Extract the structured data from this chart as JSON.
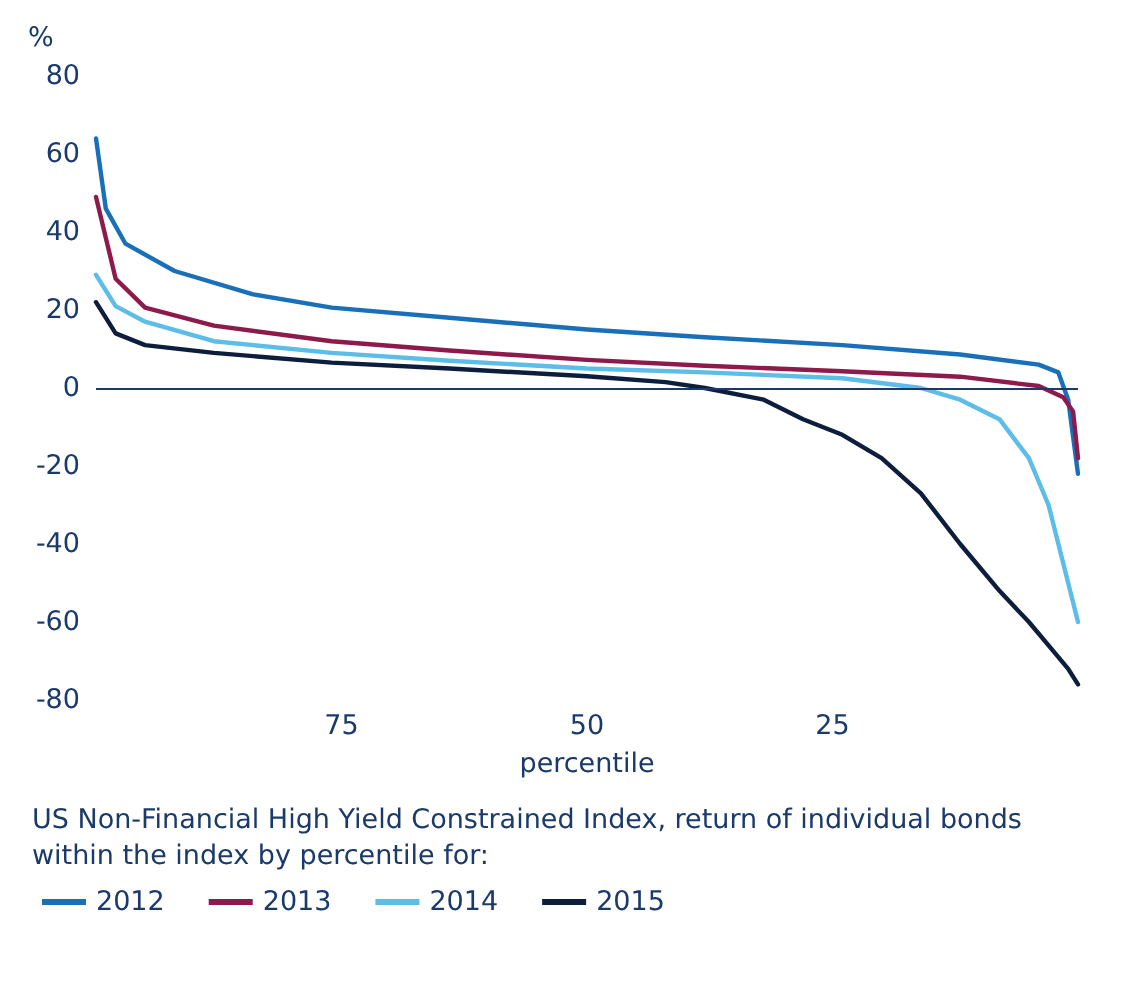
{
  "chart_data": {
    "type": "line",
    "ylabel": "%",
    "xlabel": "percentile",
    "xlim": [
      100,
      0
    ],
    "xticks": [
      75,
      50,
      25
    ],
    "ylim": [
      -80,
      80
    ],
    "yticks": [
      -80,
      -60,
      -40,
      -20,
      0,
      20,
      40,
      60,
      80
    ],
    "grid": false,
    "ref_lines": [
      {
        "axis": "y",
        "value": 0,
        "color": "#1a3a6b"
      }
    ],
    "legend": "bottom",
    "marker": "none",
    "line_style": "solid",
    "annotations": [
      "US Non-Financial High Yield Constrained Index, return of individual bonds within the index by percentile for:"
    ],
    "series": [
      {
        "name": "2012",
        "color": "#1a70b8",
        "x": [
          100,
          99,
          97,
          92,
          84,
          76,
          64,
          50,
          38,
          24,
          12,
          4,
          2,
          1,
          0
        ],
        "values": [
          64,
          46,
          37,
          30,
          24,
          20.6,
          18,
          15,
          13,
          11,
          8.6,
          6,
          4,
          -3,
          -22
        ]
      },
      {
        "name": "2013",
        "color": "#8c1a4b",
        "x": [
          100,
          98,
          95,
          88,
          76,
          64,
          50,
          38,
          24,
          12,
          4,
          1.5,
          0.5,
          0
        ],
        "values": [
          49,
          28,
          20.6,
          16,
          12,
          9.6,
          7.2,
          5.7,
          4.3,
          2.9,
          0.5,
          -2.4,
          -6,
          -18
        ]
      },
      {
        "name": "2014",
        "color": "#5bbde8",
        "x": [
          100,
          98,
          95,
          88,
          76,
          64,
          50,
          38,
          24,
          16,
          12,
          8,
          5,
          3,
          1.5,
          0
        ],
        "values": [
          29,
          21,
          17,
          12,
          9,
          7,
          5,
          4,
          2.5,
          0,
          -3,
          -8,
          -18,
          -30,
          -45,
          -60
        ]
      },
      {
        "name": "2015",
        "color": "#0d1e3d",
        "x": [
          100,
          98,
          95,
          88,
          76,
          64,
          50,
          42,
          38,
          32,
          28,
          24,
          20,
          16,
          12,
          8,
          5,
          3,
          1,
          0
        ],
        "values": [
          22,
          14,
          11,
          9,
          6.5,
          5,
          3,
          1.5,
          0,
          -3,
          -8,
          -12,
          -18,
          -27,
          -40,
          -52,
          -60,
          -66,
          -72,
          -76
        ]
      }
    ]
  }
}
